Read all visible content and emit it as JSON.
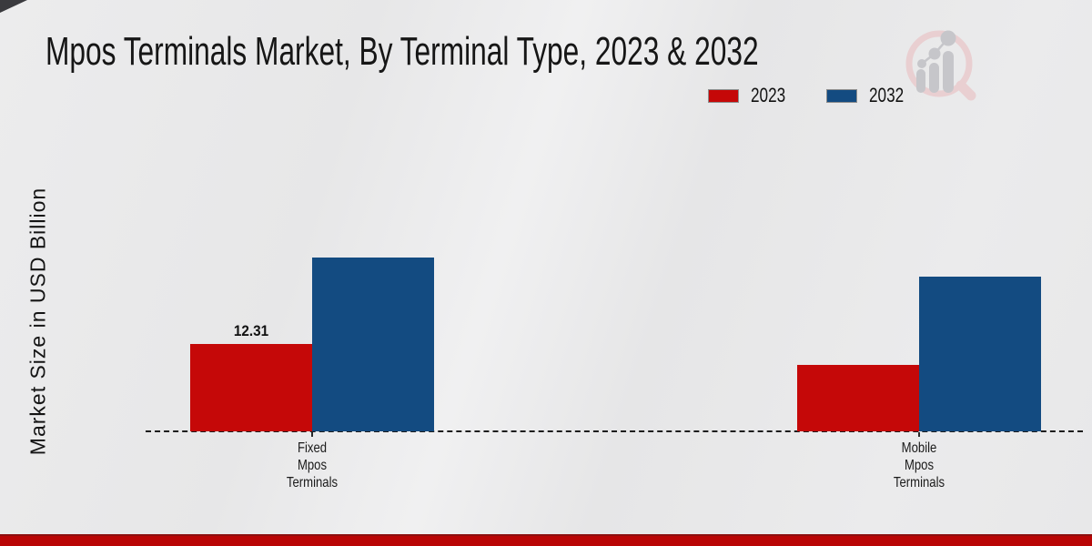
{
  "header": {
    "title": "Mpos Terminals Market, By Terminal Type, 2023 & 2032",
    "logo_name": "magnifier-growth-chart-logo"
  },
  "legend": {
    "items": [
      {
        "label": "2023",
        "color": "#c50808"
      },
      {
        "label": "2032",
        "color": "#134b81"
      }
    ]
  },
  "chart_data": {
    "type": "bar",
    "title": "Mpos Terminals Market, By Terminal Type, 2023 & 2032",
    "ylabel": "Market Size in USD Billion",
    "xlabel": "",
    "categories": [
      "Fixed Mpos Terminals",
      "Mobile Mpos Terminals"
    ],
    "category_lines": [
      [
        "Fixed",
        "Mpos",
        "Terminals"
      ],
      [
        "Mobile",
        "Mpos",
        "Terminals"
      ]
    ],
    "series": [
      {
        "name": "2023",
        "color": "#c50808",
        "values": [
          12.31,
          9.36
        ]
      },
      {
        "name": "2032",
        "color": "#134b81",
        "values": [
          24.49,
          21.79
        ]
      }
    ],
    "annotations": [
      {
        "series": 0,
        "category": 0,
        "text": "12.31"
      }
    ],
    "ylim": [
      0,
      43
    ],
    "grid": false,
    "baseline_style": "dashed",
    "legend_position": "top-right"
  },
  "colors": {
    "background": "#e9e9ea",
    "footer_band": "#b90505",
    "logo_pink": "#e9cfd1",
    "logo_grey": "#c6c6ca"
  }
}
